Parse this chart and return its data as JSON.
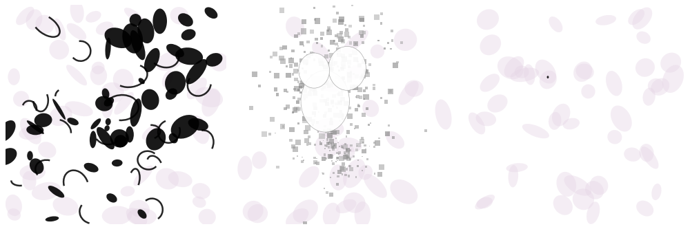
{
  "figure_width": 10.0,
  "figure_height": 3.33,
  "dpi": 100,
  "background_color": "#ffffff",
  "seed": 42,
  "rbc_face_color": [
    0.9,
    0.84,
    0.9
  ],
  "rbc_alpha": 0.42
}
